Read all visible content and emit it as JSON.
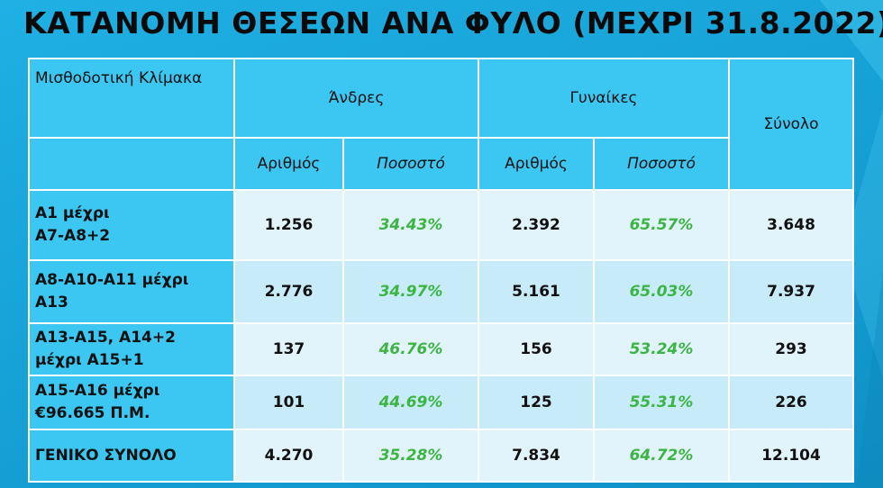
{
  "title": "ΚΑΤΑΝΟΜΗ ΘΕΣΕΩΝ ΑΝΑ ΦΥΛΟ (ΜΕΧΡΙ 31.8.2022)",
  "header": {
    "scale": "Μισθοδοτική Κλίμακα",
    "men": "Άνδρες",
    "women": "Γυναίκες",
    "total": "Σύνολο",
    "number": "Αριθμός",
    "percent": "Ποσοστό"
  },
  "rows": [
    {
      "label_line1": "Α1 μέχρι",
      "label_line2": "Α7-Α8+2",
      "men_num": "1.256",
      "men_pct": "34.43%",
      "women_num": "2.392",
      "women_pct": "65.57%",
      "total": "3.648"
    },
    {
      "label_line1": "Α8-Α10-Α11 μέχρι",
      "label_line2": "Α13",
      "men_num": "2.776",
      "men_pct": "34.97%",
      "women_num": "5.161",
      "women_pct": "65.03%",
      "total": "7.937"
    },
    {
      "label_line1": "Α13-Α15, Α14+2",
      "label_line2": "μέχρι Α15+1",
      "men_num": "137",
      "men_pct": "46.76%",
      "women_num": "156",
      "women_pct": "53.24%",
      "total": "293"
    },
    {
      "label_line1": "Α15-Α16 μέχρι",
      "label_line2": "€96.665 Π.Μ.",
      "men_num": "101",
      "men_pct": "44.69%",
      "women_num": "125",
      "women_pct": "55.31%",
      "total": "226"
    },
    {
      "label_line1": "ΓΕΝΙΚΟ ΣΥΝΟΛΟ",
      "label_line2": "",
      "men_num": "4.270",
      "men_pct": "35.28%",
      "women_num": "7.834",
      "women_pct": "64.72%",
      "total": "12.104"
    }
  ],
  "colors": {
    "background": "#18a4d8",
    "header_cell": "#3cc7f2",
    "row_light": "#e2f4fb",
    "row_alt": "#c7ebf8",
    "percent_text": "#3cb544"
  }
}
